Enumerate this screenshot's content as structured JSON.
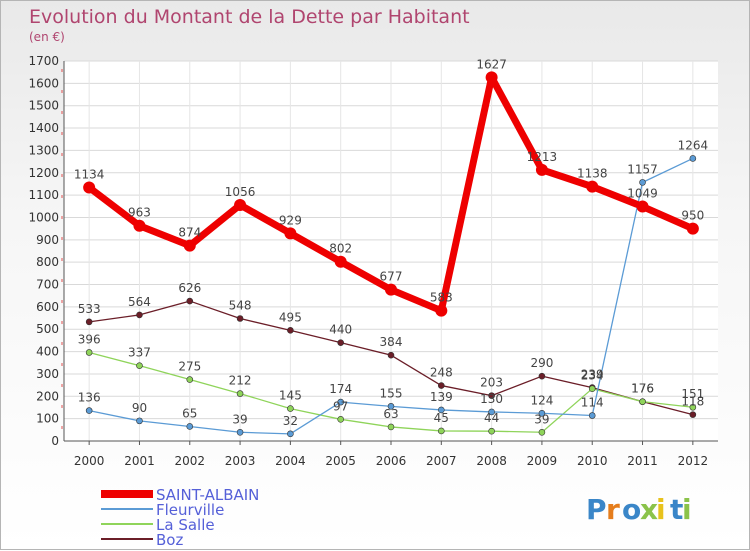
{
  "chart_data": {
    "type": "line",
    "title": "Evolution du Montant de la Dette par Habitant",
    "subtitle": "(en €)",
    "xlabel": "",
    "ylabel": "",
    "x": [
      "2000",
      "2001",
      "2002",
      "2003",
      "2004",
      "2005",
      "2006",
      "2007",
      "2008",
      "2009",
      "2010",
      "2011",
      "2012"
    ],
    "ylim": [
      0,
      1700
    ],
    "yticks": [
      0,
      100,
      200,
      300,
      400,
      500,
      600,
      700,
      800,
      900,
      1000,
      1100,
      1200,
      1300,
      1400,
      1500,
      1600,
      1700
    ],
    "grid": true,
    "legend_position": "bottom-left",
    "series": [
      {
        "name": "SAINT-ALBAIN",
        "color": "#ee0000",
        "values": [
          1134,
          963,
          874,
          1056,
          929,
          802,
          677,
          583,
          1627,
          1213,
          1138,
          1049,
          950
        ]
      },
      {
        "name": "Fleurville",
        "color": "#5b9bd5",
        "values": [
          136,
          90,
          65,
          39,
          32,
          174,
          155,
          139,
          130,
          124,
          114,
          1157,
          1264
        ]
      },
      {
        "name": "La Salle",
        "color": "#8fd45a",
        "values": [
          396,
          337,
          275,
          212,
          145,
          97,
          63,
          45,
          44,
          39,
          234,
          176,
          151
        ]
      },
      {
        "name": "Boz",
        "color": "#6b1e28",
        "values": [
          533,
          564,
          626,
          548,
          495,
          440,
          384,
          248,
          203,
          290,
          239,
          176,
          118
        ]
      }
    ]
  },
  "logo": {
    "text": "Proxiti",
    "letter_colors": [
      "#3a86c8",
      "#e57d1c",
      "#3a86c8",
      "#8bc34a",
      "#e8c21c",
      "#3a86c8",
      "#8bc34a"
    ]
  }
}
